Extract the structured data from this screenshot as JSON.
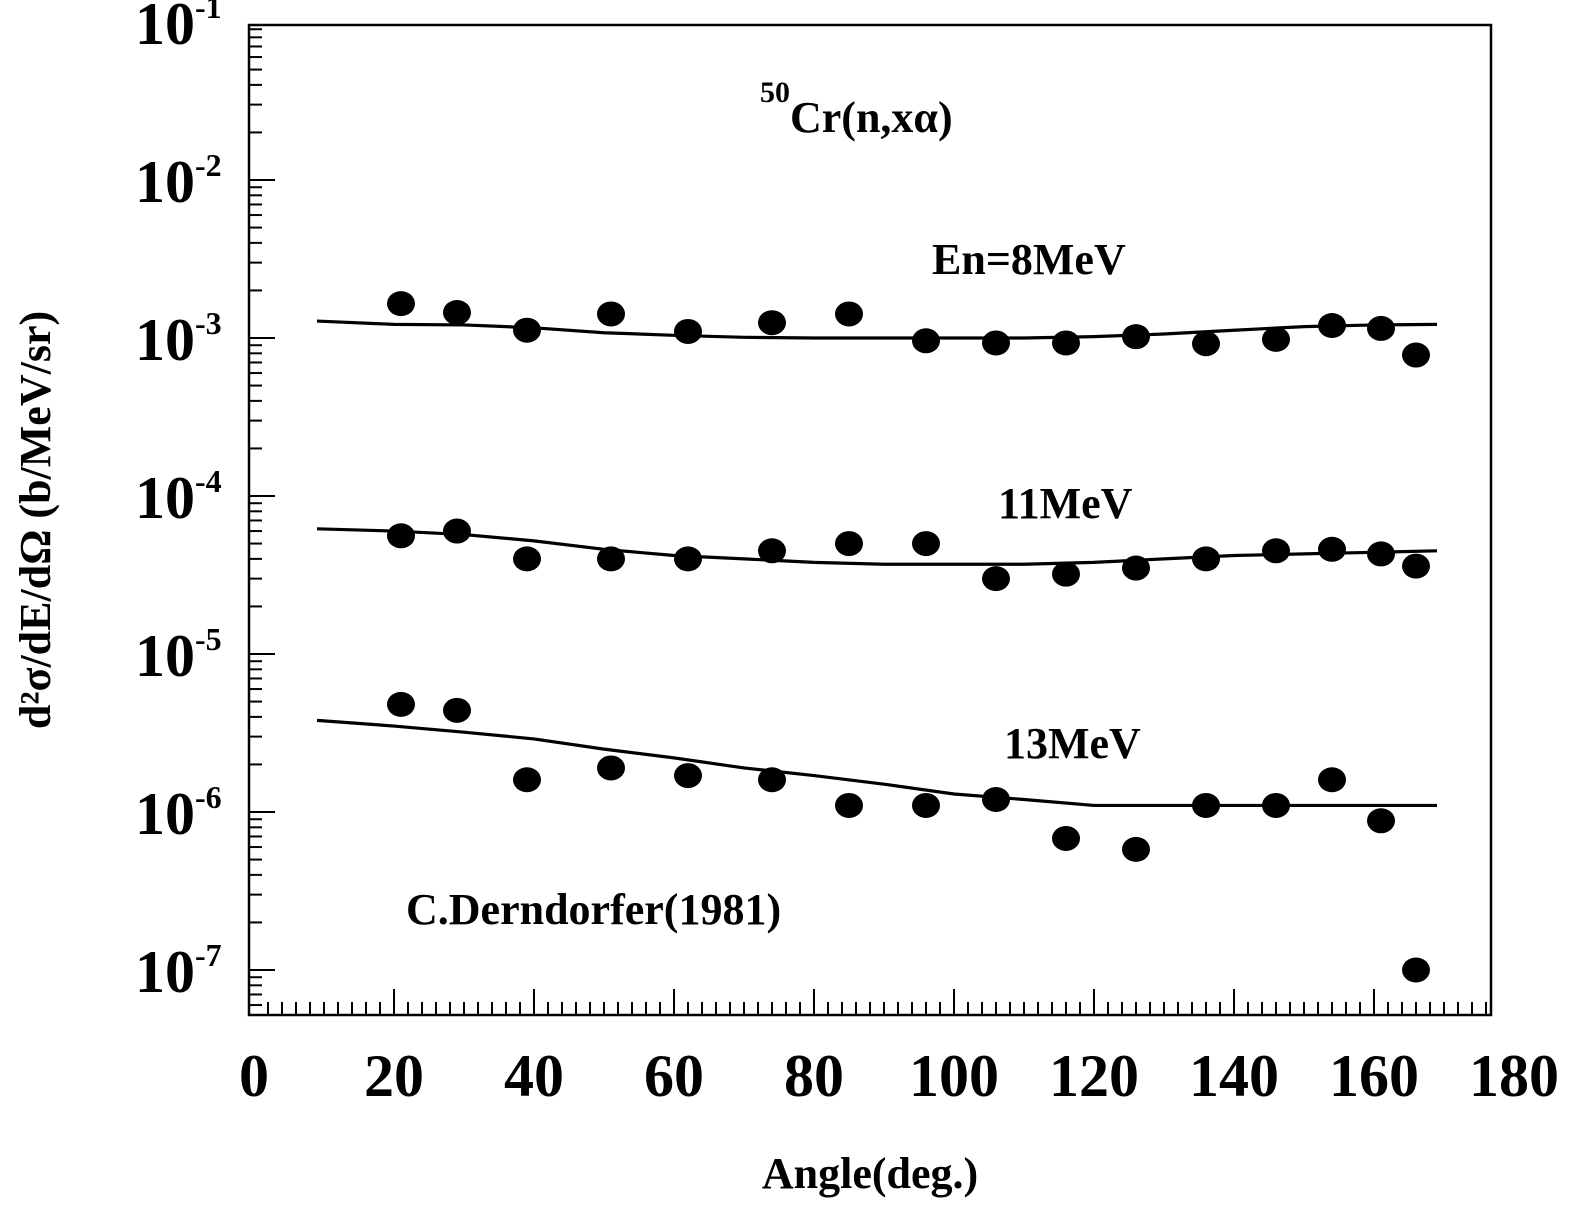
{
  "chart_data": {
    "type": "scatter",
    "title": "",
    "xlabel": "Angle(deg.)",
    "ylabel": "d²σ/dE/dΩ (b/MeV/sr)",
    "xlim": [
      0,
      180
    ],
    "ylim": [
      7e-08,
      0.1
    ],
    "yscale": "log",
    "grid": false,
    "x_ticks": [
      "0",
      "20",
      "40",
      "60",
      "80",
      "100",
      "120",
      "140",
      "160",
      "180"
    ],
    "y_ticks": [
      {
        "base": "10",
        "exp": "-1",
        "value": 0.1
      },
      {
        "base": "10",
        "exp": "-2",
        "value": 0.01
      },
      {
        "base": "10",
        "exp": "-3",
        "value": 0.001
      },
      {
        "base": "10",
        "exp": "-4",
        "value": 0.0001
      },
      {
        "base": "10",
        "exp": "-5",
        "value": 1e-05
      },
      {
        "base": "10",
        "exp": "-6",
        "value": 1e-06
      },
      {
        "base": "10",
        "exp": "-7",
        "value": 1e-07
      }
    ],
    "annotations": {
      "reaction_mass": "50",
      "reaction_rest": "Cr(n,xα)",
      "reference": "C.Derndorfer(1981)"
    },
    "series": [
      {
        "name": "En=8MeV",
        "points": [
          [
            21,
            0.00165
          ],
          [
            29,
            0.00145
          ],
          [
            39,
            0.00112
          ],
          [
            51,
            0.00142
          ],
          [
            62,
            0.0011
          ],
          [
            74,
            0.00125
          ],
          [
            85,
            0.00142
          ],
          [
            96,
            0.00096
          ],
          [
            106,
            0.00093
          ],
          [
            116,
            0.00093
          ],
          [
            126,
            0.00102
          ],
          [
            136,
            0.00092
          ],
          [
            146,
            0.00098
          ],
          [
            154,
            0.0012
          ],
          [
            161,
            0.00115
          ],
          [
            166,
            0.00078
          ]
        ],
        "curve": [
          [
            9,
            0.00128
          ],
          [
            20,
            0.00122
          ],
          [
            30,
            0.00121
          ],
          [
            40,
            0.00116
          ],
          [
            50,
            0.00108
          ],
          [
            60,
            0.00104
          ],
          [
            70,
            0.00101
          ],
          [
            80,
            0.001
          ],
          [
            90,
            0.001
          ],
          [
            100,
            0.001
          ],
          [
            110,
            0.001
          ],
          [
            120,
            0.00102
          ],
          [
            130,
            0.00106
          ],
          [
            140,
            0.00112
          ],
          [
            150,
            0.00118
          ],
          [
            160,
            0.00121
          ],
          [
            169,
            0.00122
          ]
        ]
      },
      {
        "name": "11MeV",
        "points": [
          [
            21,
            5.6e-05
          ],
          [
            29,
            6e-05
          ],
          [
            39,
            4e-05
          ],
          [
            51,
            4e-05
          ],
          [
            62,
            4e-05
          ],
          [
            74,
            4.5e-05
          ],
          [
            85,
            5e-05
          ],
          [
            96,
            5e-05
          ],
          [
            106,
            3e-05
          ],
          [
            116,
            3.2e-05
          ],
          [
            126,
            3.5e-05
          ],
          [
            136,
            4e-05
          ],
          [
            146,
            4.5e-05
          ],
          [
            154,
            4.6e-05
          ],
          [
            161,
            4.3e-05
          ],
          [
            166,
            3.6e-05
          ]
        ],
        "curve": [
          [
            9,
            6.2e-05
          ],
          [
            20,
            6e-05
          ],
          [
            30,
            5.7e-05
          ],
          [
            40,
            5.2e-05
          ],
          [
            50,
            4.6e-05
          ],
          [
            60,
            4.2e-05
          ],
          [
            70,
            4e-05
          ],
          [
            80,
            3.8e-05
          ],
          [
            90,
            3.7e-05
          ],
          [
            100,
            3.7e-05
          ],
          [
            110,
            3.7e-05
          ],
          [
            120,
            3.8e-05
          ],
          [
            130,
            4e-05
          ],
          [
            140,
            4.2e-05
          ],
          [
            150,
            4.3e-05
          ],
          [
            160,
            4.4e-05
          ],
          [
            169,
            4.5e-05
          ]
        ]
      },
      {
        "name": "13MeV",
        "points": [
          [
            21,
            4.8e-06
          ],
          [
            29,
            4.4e-06
          ],
          [
            39,
            1.6e-06
          ],
          [
            51,
            1.9e-06
          ],
          [
            62,
            1.7e-06
          ],
          [
            74,
            1.6e-06
          ],
          [
            85,
            1.1e-06
          ],
          [
            96,
            1.1e-06
          ],
          [
            106,
            1.2e-06
          ],
          [
            116,
            6.8e-07
          ],
          [
            126,
            5.8e-07
          ],
          [
            136,
            1.1e-06
          ],
          [
            146,
            1.1e-06
          ],
          [
            154,
            1.6e-06
          ],
          [
            161,
            8.8e-07
          ],
          [
            166,
            1e-07
          ]
        ],
        "curve": [
          [
            9,
            3.8e-06
          ],
          [
            20,
            3.5e-06
          ],
          [
            30,
            3.2e-06
          ],
          [
            40,
            2.9e-06
          ],
          [
            50,
            2.5e-06
          ],
          [
            60,
            2.2e-06
          ],
          [
            70,
            1.9e-06
          ],
          [
            80,
            1.7e-06
          ],
          [
            90,
            1.5e-06
          ],
          [
            100,
            1.3e-06
          ],
          [
            110,
            1.2e-06
          ],
          [
            120,
            1.1e-06
          ],
          [
            130,
            1.1e-06
          ],
          [
            140,
            1.1e-06
          ],
          [
            150,
            1.1e-06
          ],
          [
            160,
            1.1e-06
          ],
          [
            169,
            1.1e-06
          ]
        ]
      }
    ]
  }
}
